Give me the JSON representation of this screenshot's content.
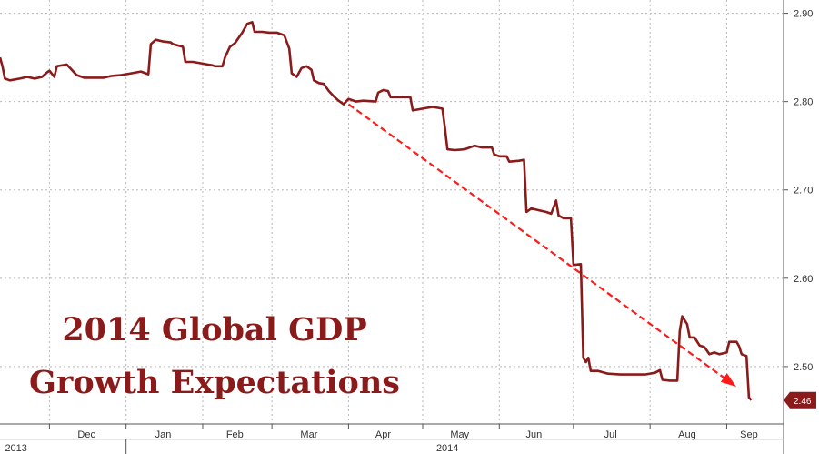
{
  "chart_data": {
    "type": "line",
    "title_lines": [
      "2014 Global GDP",
      "Growth Expectations"
    ],
    "xlabel": "",
    "ylabel": "",
    "ylim": [
      2.435,
      2.915
    ],
    "xlim": [
      "2013-11-11",
      "2014-09-24"
    ],
    "y_ticks": [
      {
        "value": 2.5,
        "label": "2.50"
      },
      {
        "value": 2.6,
        "label": "2.60"
      },
      {
        "value": 2.7,
        "label": "2.70"
      },
      {
        "value": 2.8,
        "label": "2.80"
      },
      {
        "value": 2.9,
        "label": "2.90"
      }
    ],
    "month_labels": [
      {
        "date": "2013-12-16",
        "label": "Dec"
      },
      {
        "date": "2014-01-16",
        "label": "Jan"
      },
      {
        "date": "2014-02-14",
        "label": "Feb"
      },
      {
        "date": "2014-03-16",
        "label": "Mar"
      },
      {
        "date": "2014-04-15",
        "label": "Apr"
      },
      {
        "date": "2014-05-16",
        "label": "May"
      },
      {
        "date": "2014-06-15",
        "label": "Jun"
      },
      {
        "date": "2014-07-16",
        "label": "Jul"
      },
      {
        "date": "2014-08-16",
        "label": "Aug"
      },
      {
        "date": "2014-09-10",
        "label": "Sep"
      }
    ],
    "month_boundaries": [
      "2013-12-01",
      "2014-01-01",
      "2014-02-01",
      "2014-03-01",
      "2014-04-01",
      "2014-05-01",
      "2014-06-01",
      "2014-07-01",
      "2014-08-01",
      "2014-09-01"
    ],
    "year_labels": [
      {
        "date": "2013-11-13",
        "label": "2013"
      },
      {
        "date": "2014-05-11",
        "label": "2014"
      }
    ],
    "year_boundary": "2014-01-01",
    "grid": true,
    "last_value_label": "2.46",
    "colors": {
      "line": "#8b1a1a",
      "trend": "#ff1a1a",
      "grid": "#b8b8b8",
      "title": "#8b1a1a",
      "label_bg": "#8b1a1a"
    },
    "series": [
      {
        "points": [
          [
            "2013-11-11",
            2.85
          ],
          [
            "2013-11-12",
            2.84
          ],
          [
            "2013-11-13",
            2.826
          ],
          [
            "2013-11-15",
            2.824
          ],
          [
            "2013-11-19",
            2.826
          ],
          [
            "2013-11-22",
            2.828
          ],
          [
            "2013-11-25",
            2.826
          ],
          [
            "2013-11-28",
            2.828
          ],
          [
            "2013-11-30",
            2.833
          ],
          [
            "2013-12-01",
            2.835
          ],
          [
            "2013-12-03",
            2.828
          ],
          [
            "2013-12-04",
            2.84
          ],
          [
            "2013-12-08",
            2.842
          ],
          [
            "2013-12-10",
            2.836
          ],
          [
            "2013-12-12",
            2.83
          ],
          [
            "2013-12-15",
            2.827
          ],
          [
            "2013-12-19",
            2.827
          ],
          [
            "2013-12-23",
            2.827
          ],
          [
            "2013-12-26",
            2.829
          ],
          [
            "2013-12-30",
            2.83
          ],
          [
            "2014-01-03",
            2.832
          ],
          [
            "2014-01-07",
            2.834
          ],
          [
            "2014-01-10",
            2.831
          ],
          [
            "2014-01-11",
            2.865
          ],
          [
            "2014-01-13",
            2.87
          ],
          [
            "2014-01-16",
            2.868
          ],
          [
            "2014-01-19",
            2.867
          ],
          [
            "2014-01-20",
            2.865
          ],
          [
            "2014-01-24",
            2.862
          ],
          [
            "2014-01-25",
            2.845
          ],
          [
            "2014-01-28",
            2.845
          ],
          [
            "2014-02-01",
            2.843
          ],
          [
            "2014-02-03",
            2.842
          ],
          [
            "2014-02-05",
            2.841
          ],
          [
            "2014-02-06",
            2.84
          ],
          [
            "2014-02-09",
            2.84
          ],
          [
            "2014-02-10",
            2.85
          ],
          [
            "2014-02-12",
            2.862
          ],
          [
            "2014-02-14",
            2.866
          ],
          [
            "2014-02-17",
            2.878
          ],
          [
            "2014-02-19",
            2.888
          ],
          [
            "2014-02-21",
            2.89
          ],
          [
            "2014-02-22",
            2.879
          ],
          [
            "2014-02-25",
            2.879
          ],
          [
            "2014-02-28",
            2.878
          ],
          [
            "2014-03-03",
            2.878
          ],
          [
            "2014-03-06",
            2.875
          ],
          [
            "2014-03-08",
            2.86
          ],
          [
            "2014-03-09",
            2.832
          ],
          [
            "2014-03-11",
            2.828
          ],
          [
            "2014-03-13",
            2.838
          ],
          [
            "2014-03-15",
            2.84
          ],
          [
            "2014-03-17",
            2.836
          ],
          [
            "2014-03-18",
            2.824
          ],
          [
            "2014-03-20",
            2.821
          ],
          [
            "2014-03-22",
            2.82
          ],
          [
            "2014-03-24",
            2.812
          ],
          [
            "2014-03-26",
            2.806
          ],
          [
            "2014-03-28",
            2.801
          ],
          [
            "2014-03-30",
            2.797
          ],
          [
            "2014-04-01",
            2.803
          ],
          [
            "2014-04-04",
            2.8
          ],
          [
            "2014-04-07",
            2.801
          ],
          [
            "2014-04-12",
            2.8
          ],
          [
            "2014-04-13",
            2.81
          ],
          [
            "2014-04-15",
            2.813
          ],
          [
            "2014-04-17",
            2.812
          ],
          [
            "2014-04-18",
            2.805
          ],
          [
            "2014-04-22",
            2.805
          ],
          [
            "2014-04-26",
            2.805
          ],
          [
            "2014-04-27",
            2.79
          ],
          [
            "2014-05-01",
            2.792
          ],
          [
            "2014-05-05",
            2.794
          ],
          [
            "2014-05-09",
            2.792
          ],
          [
            "2014-05-10",
            2.77
          ],
          [
            "2014-05-11",
            2.746
          ],
          [
            "2014-05-14",
            2.745
          ],
          [
            "2014-05-18",
            2.746
          ],
          [
            "2014-05-22",
            2.75
          ],
          [
            "2014-05-25",
            2.748
          ],
          [
            "2014-05-29",
            2.748
          ],
          [
            "2014-05-30",
            2.74
          ],
          [
            "2014-06-01",
            2.738
          ],
          [
            "2014-06-04",
            2.738
          ],
          [
            "2014-06-05",
            2.732
          ],
          [
            "2014-06-09",
            2.733
          ],
          [
            "2014-06-11",
            2.734
          ],
          [
            "2014-06-12",
            2.675
          ],
          [
            "2014-06-14",
            2.679
          ],
          [
            "2014-06-17",
            2.677
          ],
          [
            "2014-06-20",
            2.675
          ],
          [
            "2014-06-22",
            2.673
          ],
          [
            "2014-06-24",
            2.688
          ],
          [
            "2014-06-25",
            2.671
          ],
          [
            "2014-06-27",
            2.668
          ],
          [
            "2014-06-30",
            2.668
          ],
          [
            "2014-07-01",
            2.615
          ],
          [
            "2014-07-04",
            2.616
          ],
          [
            "2014-07-05",
            2.51
          ],
          [
            "2014-07-06",
            2.505
          ],
          [
            "2014-07-07",
            2.51
          ],
          [
            "2014-07-08",
            2.495
          ],
          [
            "2014-07-11",
            2.495
          ],
          [
            "2014-07-15",
            2.492
          ],
          [
            "2014-07-20",
            2.491
          ],
          [
            "2014-07-25",
            2.491
          ],
          [
            "2014-07-30",
            2.491
          ],
          [
            "2014-08-03",
            2.493
          ],
          [
            "2014-08-05",
            2.496
          ],
          [
            "2014-08-06",
            2.485
          ],
          [
            "2014-08-09",
            2.484
          ],
          [
            "2014-08-12",
            2.484
          ],
          [
            "2014-08-13",
            2.54
          ],
          [
            "2014-08-14",
            2.557
          ],
          [
            "2014-08-16",
            2.548
          ],
          [
            "2014-08-17",
            2.533
          ],
          [
            "2014-08-19",
            2.533
          ],
          [
            "2014-08-21",
            2.524
          ],
          [
            "2014-08-23",
            2.522
          ],
          [
            "2014-08-25",
            2.514
          ],
          [
            "2014-08-27",
            2.516
          ],
          [
            "2014-08-29",
            2.514
          ],
          [
            "2014-09-01",
            2.516
          ],
          [
            "2014-09-02",
            2.528
          ],
          [
            "2014-09-05",
            2.528
          ],
          [
            "2014-09-06",
            2.523
          ],
          [
            "2014-09-07",
            2.514
          ],
          [
            "2014-09-09",
            2.512
          ],
          [
            "2014-09-10",
            2.465
          ],
          [
            "2014-09-11",
            2.462
          ]
        ]
      }
    ],
    "trend_arrow": {
      "from": [
        "2014-04-01",
        2.797
      ],
      "to": [
        "2014-09-04",
        2.479
      ]
    }
  }
}
